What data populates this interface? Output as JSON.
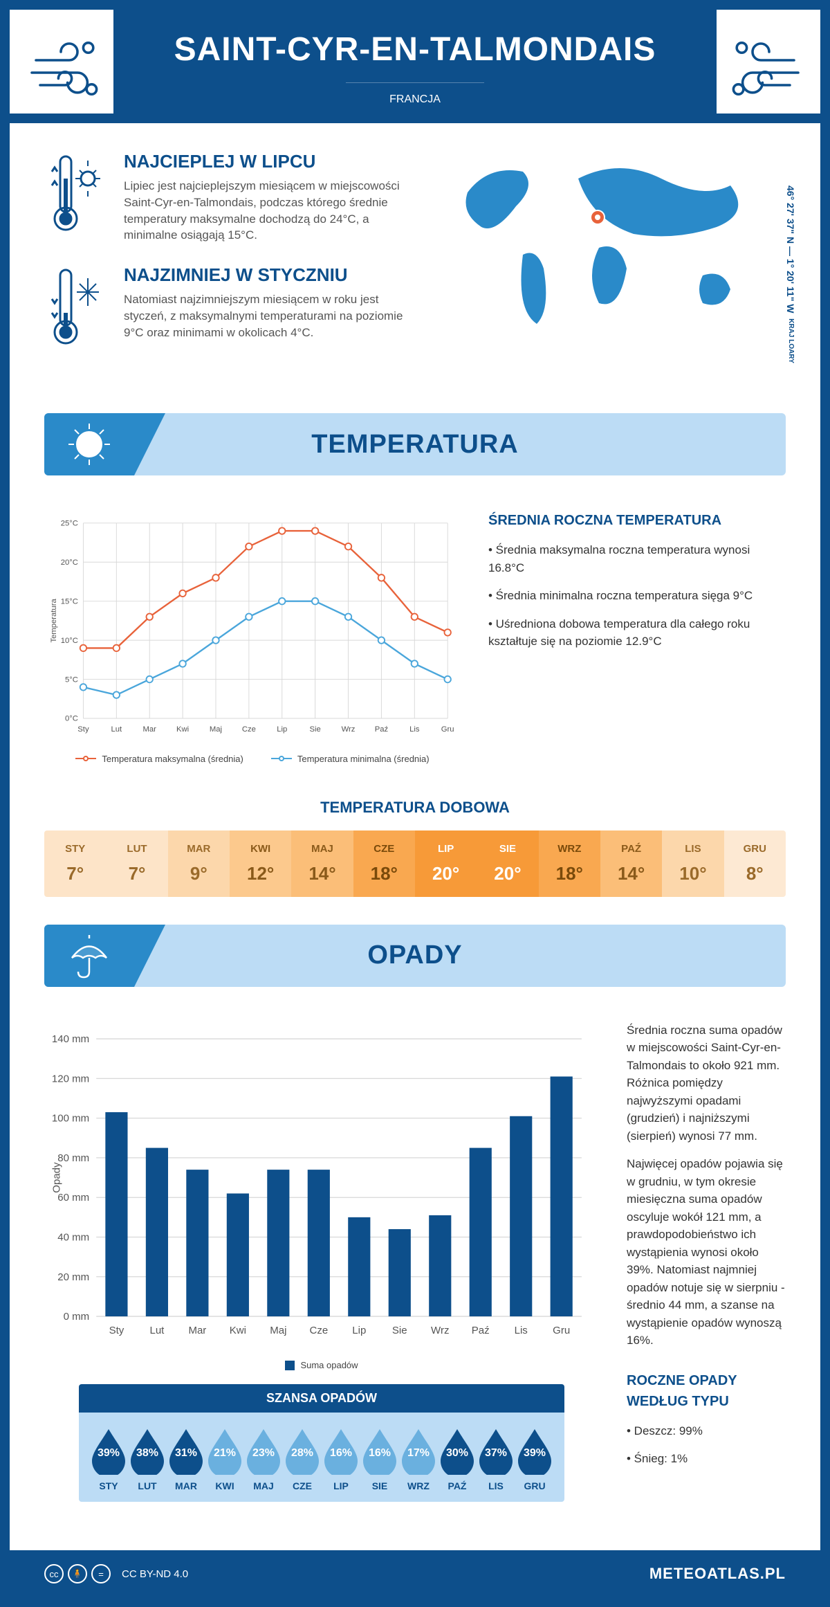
{
  "header": {
    "title": "SAINT-CYR-EN-TALMONDAIS",
    "country": "FRANCJA"
  },
  "coords": {
    "main": "46° 27' 37\" N — 1° 20' 11\" W",
    "region": "KRAJ LOARY"
  },
  "intro": {
    "hot": {
      "title": "NAJCIEPLEJ W LIPCU",
      "text": "Lipiec jest najcieplejszym miesiącem w miejscowości Saint-Cyr-en-Talmondais, podczas którego średnie temperatury maksymalne dochodzą do 24°C, a minimalne osiągają 15°C."
    },
    "cold": {
      "title": "NAJZIMNIEJ W STYCZNIU",
      "text": "Natomiast najzimniejszym miesiącem w roku jest styczeń, z maksymalnymi temperaturami na poziomie 9°C oraz minimami w okolicach 4°C."
    }
  },
  "colors": {
    "primary": "#0d4f8b",
    "primary_mid": "#2a8ac9",
    "primary_light": "#bcdcf5",
    "series_max": "#e8623a",
    "series_min": "#4aa6db",
    "bar": "#0d4f8b",
    "grid": "#d8d8d8",
    "text": "#333333"
  },
  "months_short": [
    "Sty",
    "Lut",
    "Mar",
    "Kwi",
    "Maj",
    "Cze",
    "Lip",
    "Sie",
    "Wrz",
    "Paź",
    "Lis",
    "Gru"
  ],
  "months_upper": [
    "STY",
    "LUT",
    "MAR",
    "KWI",
    "MAJ",
    "CZE",
    "LIP",
    "SIE",
    "WRZ",
    "PAŹ",
    "LIS",
    "GRU"
  ],
  "temperature": {
    "section_title": "TEMPERATURA",
    "chart": {
      "type": "line",
      "ylabel": "Temperatura",
      "ylim": [
        0,
        25
      ],
      "ytick_step": 5,
      "ytick_suffix": "°C",
      "series": {
        "max": {
          "label": "Temperatura maksymalna (średnia)",
          "color": "#e8623a",
          "values": [
            9,
            9,
            13,
            16,
            18,
            22,
            24,
            24,
            22,
            18,
            13,
            11
          ]
        },
        "min": {
          "label": "Temperatura minimalna (średnia)",
          "color": "#4aa6db",
          "values": [
            4,
            3,
            5,
            7,
            10,
            13,
            15,
            15,
            13,
            10,
            7,
            5
          ]
        }
      },
      "line_width": 2.5,
      "marker_size": 5,
      "background": "#ffffff",
      "grid_color": "#d8d8d8"
    },
    "side": {
      "heading": "ŚREDNIA ROCZNA TEMPERATURA",
      "bullets": [
        "Średnia maksymalna roczna temperatura wynosi 16.8°C",
        "Średnia minimalna roczna temperatura sięga 9°C",
        "Uśredniona dobowa temperatura dla całego roku kształtuje się na poziomie 12.9°C"
      ]
    },
    "daily_table": {
      "title": "TEMPERATURA DOBOWA",
      "values": [
        "7°",
        "7°",
        "9°",
        "12°",
        "14°",
        "18°",
        "20°",
        "20°",
        "18°",
        "14°",
        "10°",
        "8°"
      ],
      "cell_bg": [
        "#fde4c8",
        "#fde4c8",
        "#fcd7ab",
        "#fcc98d",
        "#fbbe78",
        "#f9a850",
        "#f79a38",
        "#f79a38",
        "#f9a850",
        "#fbbe78",
        "#fcd7ab",
        "#fde9d3"
      ],
      "cell_fg": [
        "#9a6a2a",
        "#9a6a2a",
        "#9a6a2a",
        "#8a5a1a",
        "#8a5a1a",
        "#7a4a0a",
        "#ffffff",
        "#ffffff",
        "#7a4a0a",
        "#8a5a1a",
        "#9a6a2a",
        "#9a6a2a"
      ]
    }
  },
  "precip": {
    "section_title": "OPADY",
    "chart": {
      "type": "bar",
      "ylabel": "Opady",
      "ylim": [
        0,
        140
      ],
      "ytick_step": 20,
      "ytick_suffix": " mm",
      "values": [
        103,
        85,
        74,
        62,
        74,
        74,
        50,
        44,
        51,
        85,
        101,
        121
      ],
      "bar_color": "#0d4f8b",
      "legend": "Suma opadów",
      "background": "#ffffff",
      "grid_color": "#d8d8d8",
      "bar_width": 0.55
    },
    "side_text": [
      "Średnia roczna suma opadów w miejscowości Saint-Cyr-en-Talmondais to około 921 mm. Różnica pomiędzy najwyższymi opadami (grudzień) i najniższymi (sierpień) wynosi 77 mm.",
      "Najwięcej opadów pojawia się w grudniu, w tym okresie miesięczna suma opadów oscyluje wokół 121 mm, a prawdopodobieństwo ich wystąpienia wynosi około 39%. Natomiast najmniej opadów notuje się w sierpniu - średnio 44 mm, a szanse na wystąpienie opadów wynoszą 16%."
    ],
    "chance": {
      "title": "SZANSA OPADÓW",
      "values": [
        39,
        38,
        31,
        21,
        23,
        28,
        16,
        16,
        17,
        30,
        37,
        39
      ],
      "drop_color_hi": "#0d4f8b",
      "drop_color_lo": "#6ab0df",
      "threshold": 30
    },
    "by_type": {
      "heading": "ROCZNE OPADY WEDŁUG TYPU",
      "bullets": [
        "Deszcz: 99%",
        "Śnieg: 1%"
      ]
    }
  },
  "footer": {
    "license": "CC BY-ND 4.0",
    "site": "METEOATLAS.PL"
  }
}
